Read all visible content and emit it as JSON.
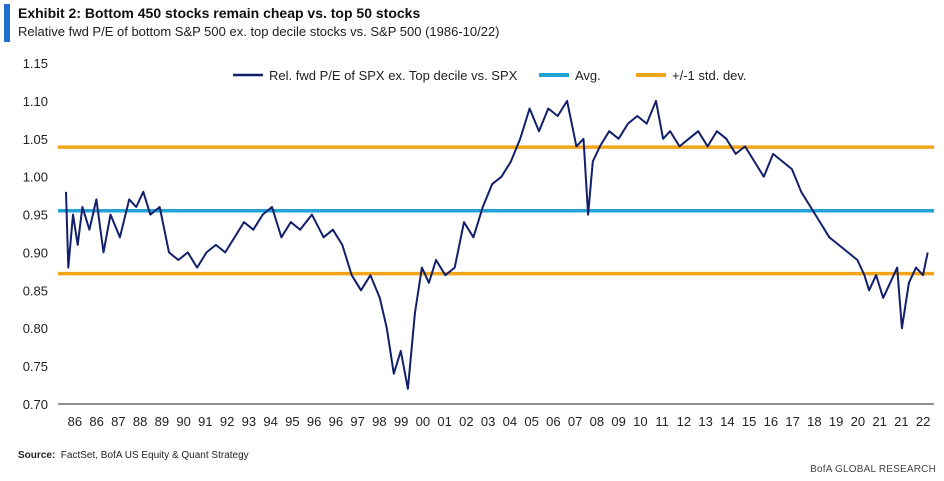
{
  "header": {
    "title": "Exhibit 2: Bottom 450 stocks remain cheap vs. top 50 stocks",
    "subtitle": "Relative fwd P/E of bottom S&P 500 ex. top decile stocks vs. S&P 500 (1986-10/22)"
  },
  "footer": {
    "source_label": "Source:",
    "source_text": "FactSet, BofA US Equity & Quant Strategy",
    "branding": "BofA GLOBAL RESEARCH"
  },
  "colors": {
    "series": "#12206b",
    "avg": "#23a2d8",
    "std": "#f2a516",
    "accent": "#1f6fd1"
  },
  "chart_data": {
    "type": "line",
    "title": "Exhibit 2: Bottom 450 stocks remain cheap vs. top 50 stocks",
    "xlabel": "",
    "ylabel": "",
    "ylim": [
      0.7,
      1.15
    ],
    "yticks": [
      "0.70",
      "0.75",
      "0.80",
      "0.85",
      "0.90",
      "0.95",
      "1.00",
      "1.05",
      "1.10",
      "1.15"
    ],
    "xticks": [
      "86",
      "86",
      "87",
      "88",
      "89",
      "90",
      "91",
      "92",
      "93",
      "94",
      "95",
      "96",
      "96",
      "97",
      "98",
      "99",
      "00",
      "01",
      "02",
      "03",
      "04",
      "05",
      "06",
      "07",
      "08",
      "09",
      "10",
      "11",
      "12",
      "13",
      "14",
      "15",
      "16",
      "17",
      "18",
      "19",
      "20",
      "21",
      "21",
      "22"
    ],
    "grid": false,
    "legend_position": "top-center",
    "series": [
      {
        "name": "Rel. fwd P/E of SPX ex. Top decile vs. SPX",
        "x": [
          1986.0,
          1986.1,
          1986.3,
          1986.5,
          1986.7,
          1987.0,
          1987.3,
          1987.6,
          1987.9,
          1988.3,
          1988.7,
          1989.0,
          1989.3,
          1989.6,
          1990.0,
          1990.4,
          1990.8,
          1991.2,
          1991.6,
          1992.0,
          1992.4,
          1992.8,
          1993.2,
          1993.6,
          1994.0,
          1994.4,
          1994.8,
          1995.2,
          1995.6,
          1996.0,
          1996.5,
          1997.0,
          1997.4,
          1997.8,
          1998.2,
          1998.6,
          1999.0,
          1999.4,
          1999.7,
          2000.0,
          2000.3,
          2000.6,
          2000.9,
          2001.2,
          2001.5,
          2001.8,
          2002.2,
          2002.6,
          2003.0,
          2003.4,
          2003.8,
          2004.2,
          2004.6,
          2005.0,
          2005.4,
          2005.8,
          2006.2,
          2006.6,
          2007.0,
          2007.4,
          2007.8,
          2008.1,
          2008.3,
          2008.5,
          2008.8,
          2009.2,
          2009.6,
          2010.0,
          2010.4,
          2010.8,
          2011.2,
          2011.5,
          2011.8,
          2012.2,
          2012.6,
          2013.0,
          2013.4,
          2013.8,
          2014.2,
          2014.6,
          2015.0,
          2015.4,
          2015.8,
          2016.2,
          2016.6,
          2017.0,
          2017.4,
          2017.8,
          2018.2,
          2018.6,
          2019.0,
          2019.4,
          2019.8,
          2020.1,
          2020.3,
          2020.6,
          2020.9,
          2021.2,
          2021.5,
          2021.7,
          2022.0,
          2022.3,
          2022.6,
          2022.8
        ],
        "values": [
          0.98,
          0.88,
          0.95,
          0.91,
          0.96,
          0.93,
          0.97,
          0.9,
          0.95,
          0.92,
          0.97,
          0.96,
          0.98,
          0.95,
          0.96,
          0.9,
          0.89,
          0.9,
          0.88,
          0.9,
          0.91,
          0.9,
          0.92,
          0.94,
          0.93,
          0.95,
          0.96,
          0.92,
          0.94,
          0.93,
          0.95,
          0.92,
          0.93,
          0.91,
          0.87,
          0.85,
          0.87,
          0.84,
          0.8,
          0.74,
          0.77,
          0.72,
          0.82,
          0.88,
          0.86,
          0.89,
          0.87,
          0.88,
          0.94,
          0.92,
          0.96,
          0.99,
          1.0,
          1.02,
          1.05,
          1.09,
          1.06,
          1.09,
          1.08,
          1.1,
          1.04,
          1.05,
          0.95,
          1.02,
          1.04,
          1.06,
          1.05,
          1.07,
          1.08,
          1.07,
          1.1,
          1.05,
          1.06,
          1.04,
          1.05,
          1.06,
          1.04,
          1.06,
          1.05,
          1.03,
          1.04,
          1.02,
          1.0,
          1.03,
          1.02,
          1.01,
          0.98,
          0.96,
          0.94,
          0.92,
          0.91,
          0.9,
          0.89,
          0.87,
          0.85,
          0.87,
          0.84,
          0.86,
          0.88,
          0.8,
          0.86,
          0.88,
          0.87,
          0.9
        ]
      },
      {
        "name": "Avg.",
        "values": [
          0.955
        ]
      },
      {
        "name": "+/-1 std. dev.",
        "values": [
          0.872,
          1.039
        ]
      }
    ]
  }
}
